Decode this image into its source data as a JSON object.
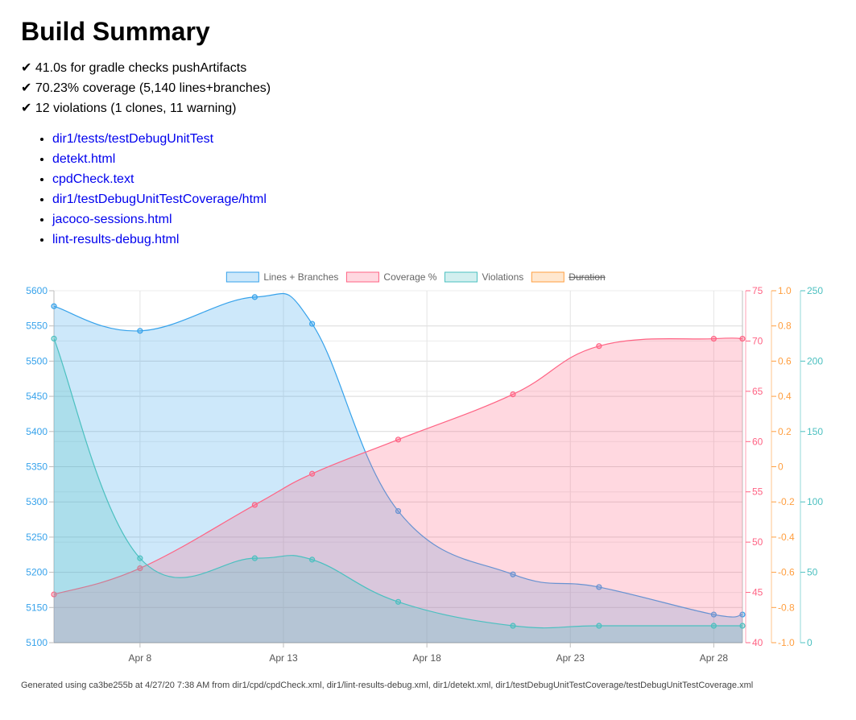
{
  "page": {
    "title": "Build Summary",
    "summary_lines": [
      "✔ 41.0s for gradle checks pushArtifacts",
      "✔ 70.23% coverage (5,140 lines+branches)",
      "✔ 12 violations (1 clones, 11 warning)"
    ],
    "links": [
      "dir1/tests/testDebugUnitTest",
      "detekt.html",
      "cpdCheck.text",
      "dir1/testDebugUnitTestCoverage/html",
      "jacoco-sessions.html",
      "lint-results-debug.html"
    ],
    "footer": "Generated using ca3be255b at 4/27/20 7:38 AM from dir1/cpd/cpdCheck.xml, dir1/lint-results-debug.xml, dir1/detekt.xml, dir1/testDebugUnitTestCoverage/testDebugUnitTestCoverage.xml"
  },
  "colors": {
    "lines": "#36a2eb",
    "coverage": "#ff6384",
    "violations": "#4bc0c0",
    "duration": "#ff9f40"
  },
  "chart_data": {
    "type": "area",
    "x_unit": "day",
    "x_range": [
      "2020-04-05",
      "2020-04-29"
    ],
    "x_ticks": [
      {
        "date": "2020-04-08",
        "label": "Apr 8"
      },
      {
        "date": "2020-04-13",
        "label": "Apr 13"
      },
      {
        "date": "2020-04-18",
        "label": "Apr 18"
      },
      {
        "date": "2020-04-23",
        "label": "Apr 23"
      },
      {
        "date": "2020-04-28",
        "label": "Apr 28"
      }
    ],
    "legend_position": "top",
    "grid": true,
    "series": [
      {
        "name": "Lines + Branches",
        "axis": "lines",
        "hidden": false,
        "points": [
          {
            "x": "2020-04-05",
            "y": 5578
          },
          {
            "x": "2020-04-08",
            "y": 5543
          },
          {
            "x": "2020-04-12",
            "y": 5591
          },
          {
            "x": "2020-04-14",
            "y": 5553
          },
          {
            "x": "2020-04-17",
            "y": 5287
          },
          {
            "x": "2020-04-21",
            "y": 5197
          },
          {
            "x": "2020-04-24",
            "y": 5179
          },
          {
            "x": "2020-04-28",
            "y": 5140
          },
          {
            "x": "2020-04-29",
            "y": 5140
          }
        ]
      },
      {
        "name": "Coverage %",
        "axis": "coverage",
        "hidden": false,
        "points": [
          {
            "x": "2020-04-05",
            "y": 44.8
          },
          {
            "x": "2020-04-08",
            "y": 47.4
          },
          {
            "x": "2020-04-12",
            "y": 53.7
          },
          {
            "x": "2020-04-14",
            "y": 56.8
          },
          {
            "x": "2020-04-17",
            "y": 60.2
          },
          {
            "x": "2020-04-21",
            "y": 64.7
          },
          {
            "x": "2020-04-24",
            "y": 69.5
          },
          {
            "x": "2020-04-28",
            "y": 70.23
          },
          {
            "x": "2020-04-29",
            "y": 70.23
          }
        ]
      },
      {
        "name": "Violations",
        "axis": "violations",
        "hidden": false,
        "points": [
          {
            "x": "2020-04-05",
            "y": 216
          },
          {
            "x": "2020-04-08",
            "y": 60
          },
          {
            "x": "2020-04-12",
            "y": 60
          },
          {
            "x": "2020-04-14",
            "y": 59
          },
          {
            "x": "2020-04-17",
            "y": 29
          },
          {
            "x": "2020-04-21",
            "y": 12
          },
          {
            "x": "2020-04-24",
            "y": 12
          },
          {
            "x": "2020-04-28",
            "y": 12
          },
          {
            "x": "2020-04-29",
            "y": 12
          }
        ]
      },
      {
        "name": "Duration",
        "axis": "duration",
        "hidden": true,
        "points": []
      }
    ],
    "axes": [
      {
        "id": "lines",
        "side": "left",
        "min": 5100,
        "max": 5600,
        "ticks": [
          5100,
          5150,
          5200,
          5250,
          5300,
          5350,
          5400,
          5450,
          5500,
          5550,
          5600
        ]
      },
      {
        "id": "coverage",
        "side": "right",
        "min": 40,
        "max": 75,
        "ticks": [
          40,
          45,
          50,
          55,
          60,
          65,
          70,
          75
        ]
      },
      {
        "id": "duration",
        "side": "right",
        "min": -1.0,
        "max": 1.0,
        "ticks": [
          "-1.0",
          "-0.8",
          "-0.6",
          "-0.4",
          "-0.2",
          "0",
          "0.2",
          "0.4",
          "0.6",
          "0.8",
          "1.0"
        ]
      },
      {
        "id": "violations",
        "side": "right",
        "min": 0,
        "max": 250,
        "ticks": [
          0,
          50,
          100,
          150,
          200,
          250
        ]
      }
    ]
  }
}
